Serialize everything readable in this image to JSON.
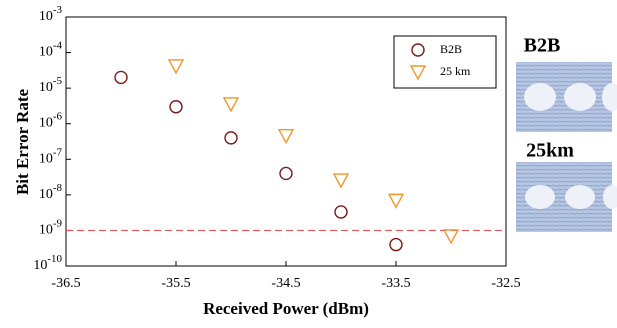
{
  "chart_data": {
    "type": "scatter",
    "x_label": "Received Power (dBm)",
    "y_label": "Bit Error Rate",
    "xlim": [
      -36.5,
      -32.5
    ],
    "xticks": [
      -36.5,
      -35.5,
      -34.5,
      -33.5,
      -32.5
    ],
    "ylim": [
      1e-10,
      0.001
    ],
    "log_y": true,
    "yticks": [
      {
        "value": 1e-10,
        "label": "10-10"
      },
      {
        "value": 1e-09,
        "label": "10-9"
      },
      {
        "value": 1e-08,
        "label": "10-8"
      },
      {
        "value": 1e-07,
        "label": "10-7"
      },
      {
        "value": 1e-06,
        "label": "10-6"
      },
      {
        "value": 1e-05,
        "label": "10-5"
      },
      {
        "value": 0.0001,
        "label": "10-4"
      },
      {
        "value": 0.001,
        "label": "10-3"
      }
    ],
    "threshold": {
      "value": 1e-09,
      "color": "#e8555a"
    },
    "legend": "upper right",
    "series": [
      {
        "name": "B2B",
        "color": "#7a1a1a",
        "marker": "circle",
        "x": [
          -36,
          -35.5,
          -35,
          -34.5,
          -34,
          -33.5
        ],
        "values": [
          2e-05,
          3e-06,
          4e-07,
          4e-08,
          3.3e-09,
          4e-10
        ]
      },
      {
        "name": "25 km",
        "color": "#f0962a",
        "marker": "triangle-down",
        "x": [
          -35.5,
          -35,
          -34.5,
          -34,
          -33.5,
          -33
        ],
        "values": [
          4.2e-05,
          3.6e-06,
          4.6e-07,
          2.6e-08,
          7e-09,
          7e-10
        ]
      }
    ]
  },
  "eye_labels": [
    "B2B",
    "25km"
  ]
}
